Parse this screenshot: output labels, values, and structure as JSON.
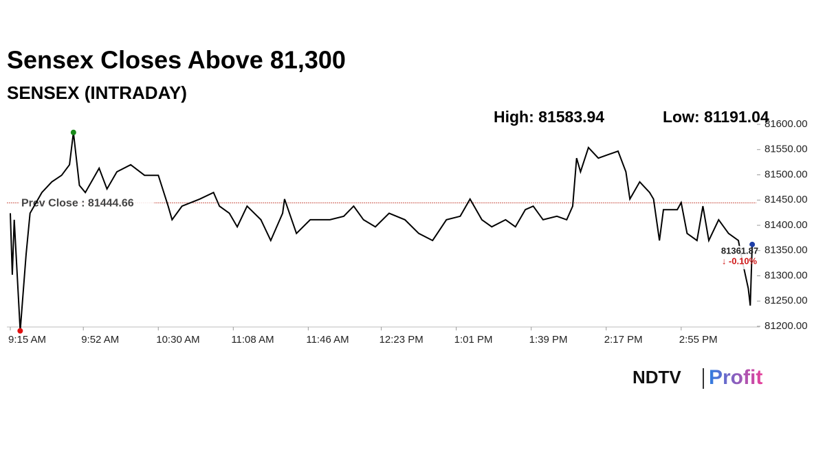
{
  "chart_data": {
    "type": "line",
    "title": "Sensex Closes Above 81,300",
    "subtitle": "SENSEX (INTRADAY)",
    "high_label": "High: 81583.94",
    "low_label": "Low: 81191.04",
    "color": "#000000",
    "x": [
      555,
      556,
      557,
      560,
      563,
      565,
      571,
      576,
      581,
      585,
      587,
      590,
      593,
      600,
      604,
      609,
      616,
      623,
      630,
      635,
      637,
      642,
      651,
      658,
      661,
      666,
      670,
      675,
      682,
      687,
      693,
      694,
      700,
      707,
      717,
      724,
      729,
      734,
      740,
      747,
      755,
      762,
      769,
      776,
      783,
      788,
      794,
      799,
      806,
      811,
      816,
      820,
      825,
      832,
      837,
      840,
      842,
      844,
      848,
      853,
      858,
      863,
      867,
      869,
      874,
      879,
      881,
      884,
      886,
      893,
      895,
      898,
      903,
      906,
      909,
      914,
      919,
      924,
      926,
      929,
      930,
      931
    ],
    "values": [
      81424,
      81302,
      81411,
      81191,
      81343,
      81424,
      81465,
      81486,
      81499,
      81520,
      81584,
      81479,
      81465,
      81513,
      81472,
      81506,
      81520,
      81499,
      81499,
      81438,
      81411,
      81438,
      81452,
      81465,
      81438,
      81424,
      81397,
      81438,
      81411,
      81370,
      81424,
      81452,
      81384,
      81411,
      81411,
      81418,
      81438,
      81411,
      81397,
      81424,
      81411,
      81384,
      81370,
      81411,
      81418,
      81452,
      81411,
      81397,
      81411,
      81397,
      81431,
      81438,
      81411,
      81418,
      81411,
      81438,
      81533,
      81506,
      81554,
      81533,
      81540,
      81547,
      81506,
      81452,
      81486,
      81465,
      81452,
      81370,
      81431,
      81431,
      81445,
      81384,
      81370,
      81438,
      81370,
      81411,
      81384,
      81370,
      81329,
      81275,
      81241,
      81362
    ],
    "reference_line": {
      "value": 81444.66,
      "label": "Prev Close : 81444.66",
      "color": "#c0392b"
    },
    "last_label": "81361.87",
    "change_label": "↓ -0.10%",
    "xlim": [
      555,
      932
    ],
    "xticks": [
      {
        "value": 555,
        "label": "9:15 AM"
      },
      {
        "value": 592,
        "label": "9:52 AM"
      },
      {
        "value": 630,
        "label": "10:30 AM"
      },
      {
        "value": 668,
        "label": "11:08 AM"
      },
      {
        "value": 706,
        "label": "11:46 AM"
      },
      {
        "value": 743,
        "label": "12:23 PM"
      },
      {
        "value": 781,
        "label": "1:01 PM"
      },
      {
        "value": 819,
        "label": "1:39 PM"
      },
      {
        "value": 857,
        "label": "2:17 PM"
      },
      {
        "value": 895,
        "label": "2:55 PM"
      }
    ],
    "ylim": [
      81190,
      81600
    ],
    "yticks": [
      {
        "value": 81200,
        "label": "81200.00"
      },
      {
        "value": 81250,
        "label": "81250.00"
      },
      {
        "value": 81300,
        "label": "81300.00"
      },
      {
        "value": 81350,
        "label": "81350.00"
      },
      {
        "value": 81400,
        "label": "81400.00"
      },
      {
        "value": 81450,
        "label": "81450.00"
      },
      {
        "value": 81500,
        "label": "81500.00"
      },
      {
        "value": 81550,
        "label": "81550.00"
      },
      {
        "value": 81600,
        "label": "81600.00"
      }
    ],
    "logo": {
      "left": "NDTV",
      "right": "Profit"
    }
  }
}
